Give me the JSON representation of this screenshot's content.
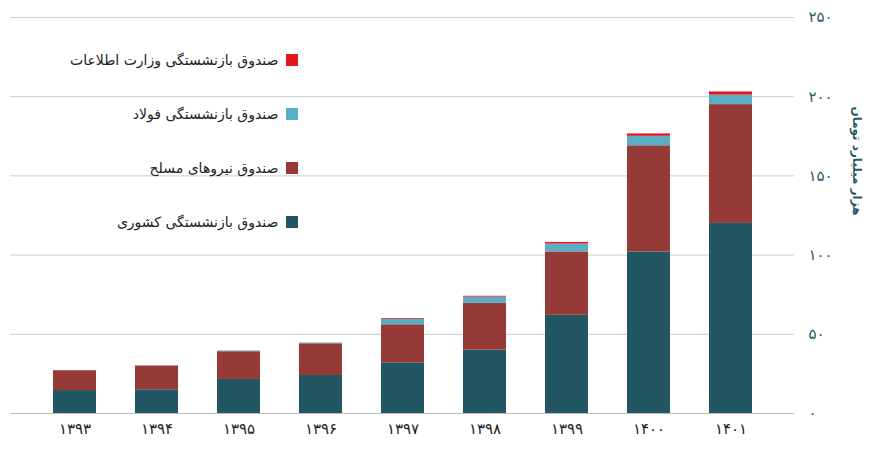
{
  "chart_data": {
    "type": "bar",
    "stacked": true,
    "grid": true,
    "legend": "top-left",
    "y_label": "هزار میلیارد تومان",
    "categories": [
      "۱۳۹۳",
      "۱۳۹۴",
      "۱۳۹۵",
      "۱۳۹۶",
      "۱۳۹۷",
      "۱۳۹۸",
      "۱۳۹۹",
      "۱۴۰۰",
      "۱۴۰۱"
    ],
    "ylim": [
      0,
      250
    ],
    "yticks": [
      {
        "value": 0,
        "label": "۰"
      },
      {
        "value": 50,
        "label": "۵۰"
      },
      {
        "value": 100,
        "label": "۱۰۰"
      },
      {
        "value": 150,
        "label": "۱۵۰"
      },
      {
        "value": 200,
        "label": "۲۰۰"
      },
      {
        "value": 250,
        "label": "۲۵۰"
      }
    ],
    "series": [
      {
        "name": "صندوق بازنشستگی کشوری",
        "color": "#235663",
        "values": [
          14.5,
          15,
          21.5,
          24,
          32,
          40,
          62,
          102,
          120
        ]
      },
      {
        "name": "صندوق نیروهای مسلح",
        "color": "#963a38",
        "values": [
          12.5,
          15,
          17.5,
          20,
          24,
          29.5,
          40,
          67,
          75
        ]
      },
      {
        "name": "صندوق بازنشستگی فولاد",
        "color": "#5aaec3",
        "values": [
          0,
          0,
          0.5,
          0.5,
          3.5,
          4,
          5,
          6,
          6
        ]
      },
      {
        "name": "صندوق بازنشستگی وزارت اطلاعات",
        "color": "#e8141c",
        "values": [
          0,
          0,
          0,
          0,
          0.5,
          0.5,
          1,
          1.5,
          2
        ]
      }
    ]
  }
}
